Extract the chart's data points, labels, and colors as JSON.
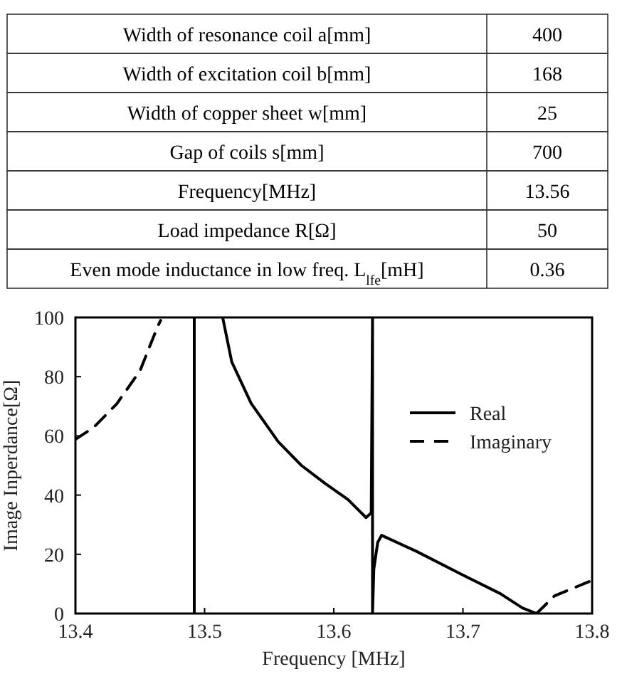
{
  "chart_data": {
    "type": "line",
    "xlabel": "Frequency [MHz]",
    "ylabel": "Image Inperdance[Ω]",
    "annotations": [
      "Width of resonance coil a[mm]",
      "400",
      "Width of excitation coil b[mm]",
      "168",
      "Width of copper sheet w[mm]",
      "25",
      "Gap of coils s[mm]",
      "700",
      "Frequency[MHz]",
      "13.56",
      "Load impedance R[Ω]",
      "50",
      "Even mode inductance in low freq. L$_{lfe}$[mH]",
      "0.36"
    ],
    "xlim": [
      13.4,
      13.8
    ],
    "xticks": [
      13.4,
      13.5,
      13.6,
      13.7,
      13.8
    ],
    "ylim": [
      0,
      100
    ],
    "yticks": [
      0,
      20,
      40,
      60,
      80,
      100
    ],
    "legend": "right",
    "grid": false,
    "series": [
      {
        "name": "Real",
        "color": "#000000",
        "line_style": "solid",
        "x": [
          13.492,
          13.492,
          null,
          13.514,
          13.521,
          13.536,
          13.557,
          13.575,
          13.593,
          13.611,
          13.625,
          13.629,
          13.63,
          13.63,
          13.631,
          13.634,
          13.637,
          13.664,
          13.7,
          13.729,
          13.746,
          13.757
        ],
        "values": [
          0,
          100,
          null,
          100,
          85,
          71,
          58,
          50,
          44,
          38.5,
          32.4,
          34,
          100,
          0,
          15,
          24,
          26.4,
          21,
          13,
          6.7,
          1.9,
          0
        ]
      },
      {
        "name": "Imaginary",
        "color": "#000000",
        "line_style": "dashed",
        "x": [
          13.4,
          13.414,
          13.432,
          13.45,
          13.464,
          13.466,
          null,
          13.757,
          13.771,
          13.8
        ],
        "values": [
          58.8,
          62.8,
          70.8,
          82,
          97.3,
          99,
          null,
          0,
          6,
          11.2
        ]
      }
    ]
  }
}
